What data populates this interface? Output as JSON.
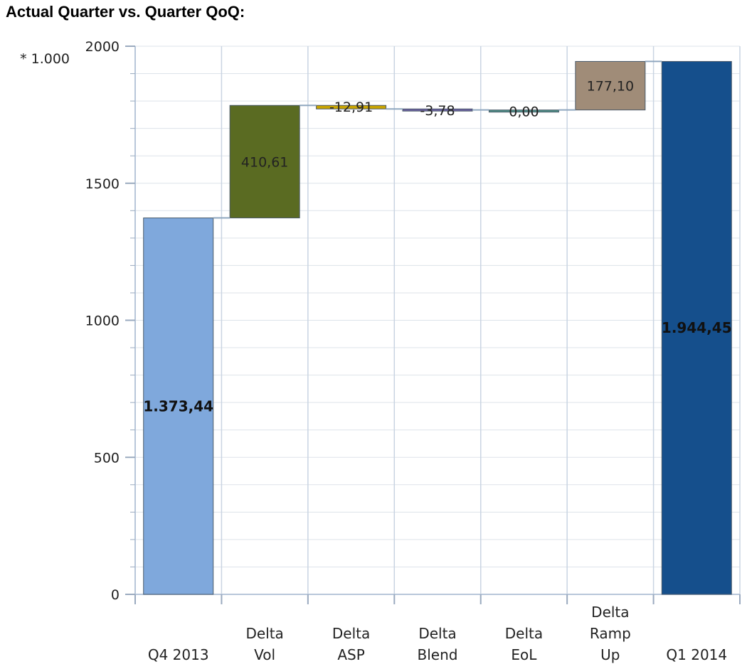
{
  "title": "Actual Quarter vs. Quarter QoQ:",
  "chart_data": {
    "type": "bar",
    "subtype": "waterfall",
    "title": "Actual Quarter vs. Quarter QoQ:",
    "y_multiplier_label": "* 1.000",
    "ylim": [
      0,
      2000
    ],
    "yticks": [
      0,
      500,
      1000,
      1500,
      2000
    ],
    "grid": true,
    "categories": [
      [
        "Q4 2013"
      ],
      [
        "Delta",
        "Vol"
      ],
      [
        "Delta",
        "ASP"
      ],
      [
        "Delta",
        "Blend"
      ],
      [
        "Delta",
        "EoL"
      ],
      [
        "Delta",
        "Ramp",
        "Up"
      ],
      [
        "Q1 2014"
      ]
    ],
    "values": [
      1373.44,
      410.61,
      -12.91,
      -3.78,
      0.0,
      177.1,
      1944.45
    ],
    "kinds": [
      "total",
      "delta",
      "delta",
      "delta",
      "delta",
      "delta",
      "total"
    ],
    "value_labels": [
      "1.373,44",
      "410,61",
      "-12,91",
      "-3,78",
      "0,00",
      "177,10",
      "1.944,45"
    ],
    "colors": [
      "#7fa8dc",
      "#5a6b22",
      "#c9a400",
      "#6b5fa0",
      "#4f8f86",
      "#a08c78",
      "#154f8c"
    ]
  }
}
